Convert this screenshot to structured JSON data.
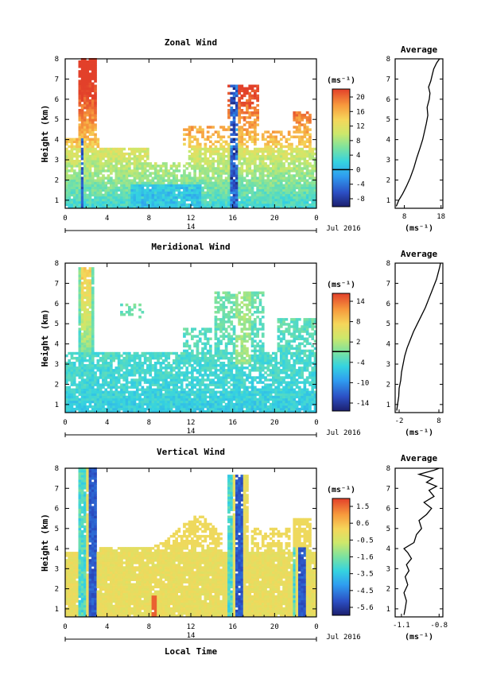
{
  "figure": {
    "x_axis_label": "Local Time",
    "date_label": "Jul 2016",
    "day_label": "14",
    "y_axis_label": "Height (km)",
    "average_title": "Average"
  },
  "chart_data": [
    {
      "type": "heatmap",
      "title": "Zonal Wind",
      "xlabel": "Local Time",
      "ylabel": "Height (km)",
      "x_ticks": [
        "0",
        "4",
        "8",
        "12",
        "16",
        "20",
        "0"
      ],
      "y_ticks": [
        "1",
        "2",
        "3",
        "4",
        "5",
        "6",
        "7",
        "8"
      ],
      "xlim": [
        0,
        24
      ],
      "ylim": [
        0.6,
        8
      ],
      "colorbar_unit": "(ms⁻¹)",
      "colorbar_ticks": [
        "20",
        "16",
        "12",
        "8",
        "4",
        "0",
        "-4",
        "-8"
      ],
      "colorbar_range": [
        -10,
        22
      ],
      "zero_contour": true,
      "average": {
        "xlabel": "(ms⁻¹)",
        "x_ticks": [
          "8",
          "18"
        ],
        "xlim": [
          5.5,
          18.5
        ],
        "x": [
          5.8,
          6.5,
          7.5,
          8.6,
          9.6,
          10.6,
          11.4,
          12.3,
          13.0,
          13.5,
          14.0,
          14.4,
          14.2,
          14.8,
          15.0,
          14.6,
          15.2,
          15.6,
          16.0,
          16.8,
          17.6
        ],
        "y": [
          0.7,
          1.0,
          1.3,
          1.7,
          2.1,
          2.6,
          3.1,
          3.6,
          4.0,
          4.4,
          4.8,
          5.2,
          5.6,
          6.0,
          6.3,
          6.6,
          6.9,
          7.2,
          7.5,
          7.8,
          8.0
        ]
      }
    },
    {
      "type": "heatmap",
      "title": "Meridional Wind",
      "xlabel": "Local Time",
      "ylabel": "Height (km)",
      "x_ticks": [
        "0",
        "4",
        "8",
        "12",
        "16",
        "20",
        "0"
      ],
      "y_ticks": [
        "1",
        "2",
        "3",
        "4",
        "5",
        "6",
        "7",
        "8"
      ],
      "xlim": [
        0,
        24
      ],
      "ylim": [
        0.6,
        8
      ],
      "colorbar_unit": "(ms⁻¹)",
      "colorbar_ticks": [
        "14",
        "8",
        "2",
        "-4",
        "-10",
        "-14"
      ],
      "colorbar_range": [
        -16,
        16
      ],
      "zero_contour": true,
      "average": {
        "xlabel": "(ms⁻¹)",
        "x_ticks": [
          "-2",
          "8"
        ],
        "xlim": [
          -3,
          9
        ],
        "x": [
          -2.6,
          -2.4,
          -2.1,
          -2.0,
          -1.6,
          -1.4,
          -1.0,
          -0.6,
          0.0,
          0.8,
          1.6,
          2.6,
          3.6,
          4.6,
          5.4,
          6.2,
          6.8,
          7.4,
          7.8,
          8.2,
          8.4
        ],
        "y": [
          0.7,
          1.0,
          1.4,
          1.8,
          2.2,
          2.6,
          3.0,
          3.4,
          3.8,
          4.2,
          4.6,
          5.0,
          5.4,
          5.8,
          6.2,
          6.6,
          6.9,
          7.2,
          7.5,
          7.8,
          8.0
        ]
      }
    },
    {
      "type": "heatmap",
      "title": "Vertical Wind",
      "xlabel": "Local Time",
      "ylabel": "Height (km)",
      "x_ticks": [
        "0",
        "4",
        "8",
        "12",
        "16",
        "20",
        "0"
      ],
      "y_ticks": [
        "1",
        "2",
        "3",
        "4",
        "5",
        "6",
        "7",
        "8"
      ],
      "xlim": [
        0,
        24
      ],
      "ylim": [
        0.6,
        8
      ],
      "colorbar_unit": "(ms⁻¹)",
      "colorbar_ticks": [
        "1.5",
        "0.6",
        "-0.5",
        "-1.6",
        "-3.5",
        "-4.5",
        "-5.6"
      ],
      "colorbar_range": [
        -6.2,
        2.2
      ],
      "zero_contour": false,
      "average": {
        "xlabel": "(ms⁻¹)",
        "x_ticks": [
          "-1.1",
          "-0.8"
        ],
        "xlim": [
          -1.15,
          -0.77
        ],
        "x": [
          -1.08,
          -1.07,
          -1.06,
          -1.08,
          -1.05,
          -1.07,
          -1.04,
          -1.06,
          -1.02,
          -1.05,
          -1.08,
          -1.0,
          -0.98,
          -0.94,
          -0.96,
          -0.9,
          -0.86,
          -0.92,
          -0.84,
          -0.88,
          -0.82,
          -0.9,
          -0.85,
          -0.96,
          -0.84,
          -0.8
        ],
        "y": [
          0.7,
          1.0,
          1.4,
          1.8,
          2.2,
          2.6,
          2.9,
          3.2,
          3.5,
          3.8,
          4.0,
          4.3,
          4.7,
          5.0,
          5.4,
          5.7,
          6.0,
          6.3,
          6.6,
          6.9,
          7.1,
          7.3,
          7.5,
          7.7,
          7.9,
          8.0
        ]
      }
    }
  ]
}
